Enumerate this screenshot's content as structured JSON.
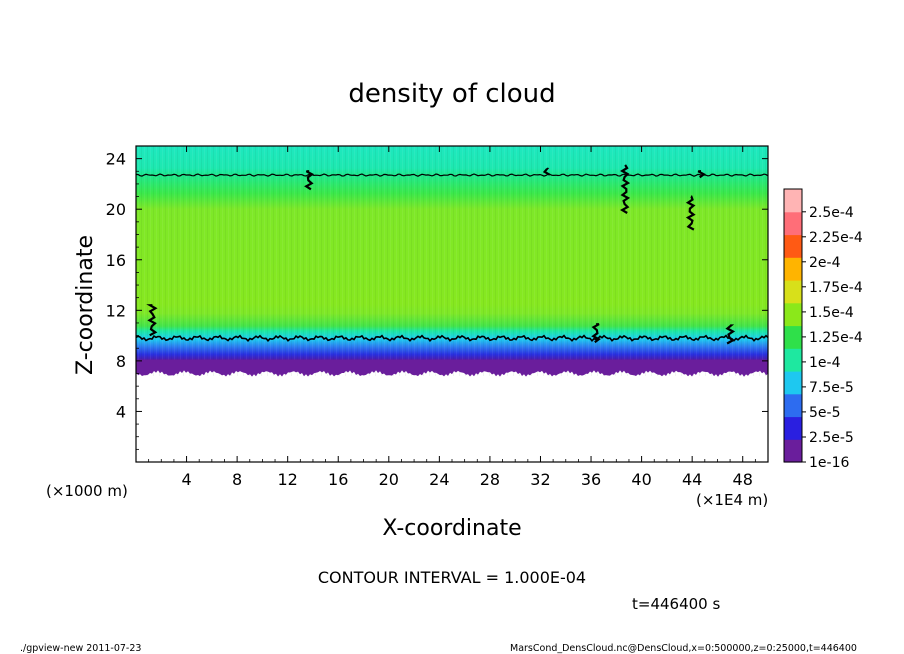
{
  "chart_data": {
    "type": "heatmap",
    "title": "density of cloud",
    "xlabel": "X-coordinate",
    "ylabel": "Z-coordinate",
    "x_unit": "(×1E4 m)",
    "y_unit": "(×1000 m)",
    "xlim": [
      0,
      50
    ],
    "ylim": [
      0,
      25
    ],
    "x_ticks": [
      "4",
      "8",
      "12",
      "16",
      "20",
      "24",
      "28",
      "32",
      "36",
      "40",
      "44",
      "48"
    ],
    "y_ticks": [
      "4",
      "8",
      "12",
      "16",
      "20",
      "24"
    ],
    "x_tick_values": [
      4,
      8,
      12,
      16,
      20,
      24,
      28,
      32,
      36,
      40,
      44,
      48
    ],
    "y_tick_values": [
      4,
      8,
      12,
      16,
      20,
      24
    ],
    "colorbar": {
      "labels": [
        "1e-16",
        "2.5e-5",
        "5e-5",
        "7.5e-5",
        "1e-4",
        "1.25e-4",
        "1.5e-4",
        "1.75e-4",
        "2e-4",
        "2.25e-4",
        "2.5e-4"
      ],
      "colors": [
        "#6a1e9c",
        "#2a1fe0",
        "#2d6cf0",
        "#1ec8f0",
        "#1ee8a0",
        "#2fe04a",
        "#8be81a",
        "#d8e01a",
        "#ffb400",
        "#ff5a14",
        "#ff6e78",
        "#ffb4b4"
      ]
    },
    "field_layers": [
      {
        "z_from": 0,
        "z_to": 7.0,
        "value": "none"
      },
      {
        "z_from": 7.0,
        "z_to": 7.8,
        "value": "1e-16 to 2.5e-5"
      },
      {
        "z_from": 7.8,
        "z_to": 8.5,
        "value": "2.5e-5 to 5e-5"
      },
      {
        "z_from": 8.5,
        "z_to": 9.4,
        "value": "5e-5 to 1e-4"
      },
      {
        "z_from": 9.4,
        "z_to": 10.5,
        "value": "1e-4 to 1.25e-4"
      },
      {
        "z_from": 10.5,
        "z_to": 20.5,
        "value": "1.25e-4 to 1.5e-4"
      },
      {
        "z_from": 20.5,
        "z_to": 22.7,
        "value": "1e-4 to 1.25e-4"
      },
      {
        "z_from": 22.7,
        "z_to": 25.0,
        "value": "7.5e-5 to 1e-4"
      }
    ],
    "contour_levels_z": [
      9.8,
      22.7
    ],
    "contour_interval_text": "CONTOUR INTERVAL = 1.000E-04",
    "time_text": "t=446400 s"
  },
  "footer": {
    "left": "./gpview-new   2011-07-23",
    "right": "MarsCond_DensCloud.nc@DensCloud,x=0:500000,z=0:25000,t=446400"
  }
}
